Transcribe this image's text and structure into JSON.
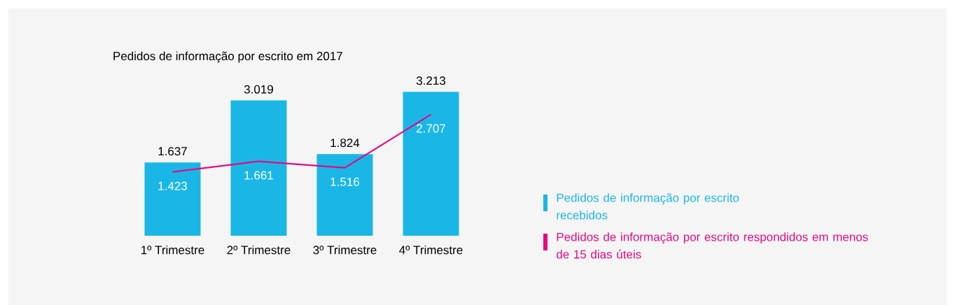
{
  "chart_data": {
    "type": "bar",
    "title": "Pedidos de informação por escrito em 2017",
    "categories": [
      "1º Trimestre",
      "2º Trimestre",
      "3º Trimestre",
      "4º Trimestre"
    ],
    "series": [
      {
        "name": "Pedidos de informação por escrito recebidos",
        "color": "#1ab7e6",
        "values": [
          1637,
          3019,
          1824,
          3213
        ],
        "value_labels": [
          "1.637",
          "3.019",
          "1.824",
          "3.213"
        ]
      },
      {
        "name": "Pedidos de informação por escrito respondidos em menos de 15 dias úteis",
        "type": "line",
        "color": "#e5097f",
        "values": [
          1423,
          1661,
          1516,
          2707
        ],
        "value_labels": [
          "1.423",
          "1.661",
          "1.516",
          "2.707"
        ]
      }
    ],
    "legend": "right"
  }
}
